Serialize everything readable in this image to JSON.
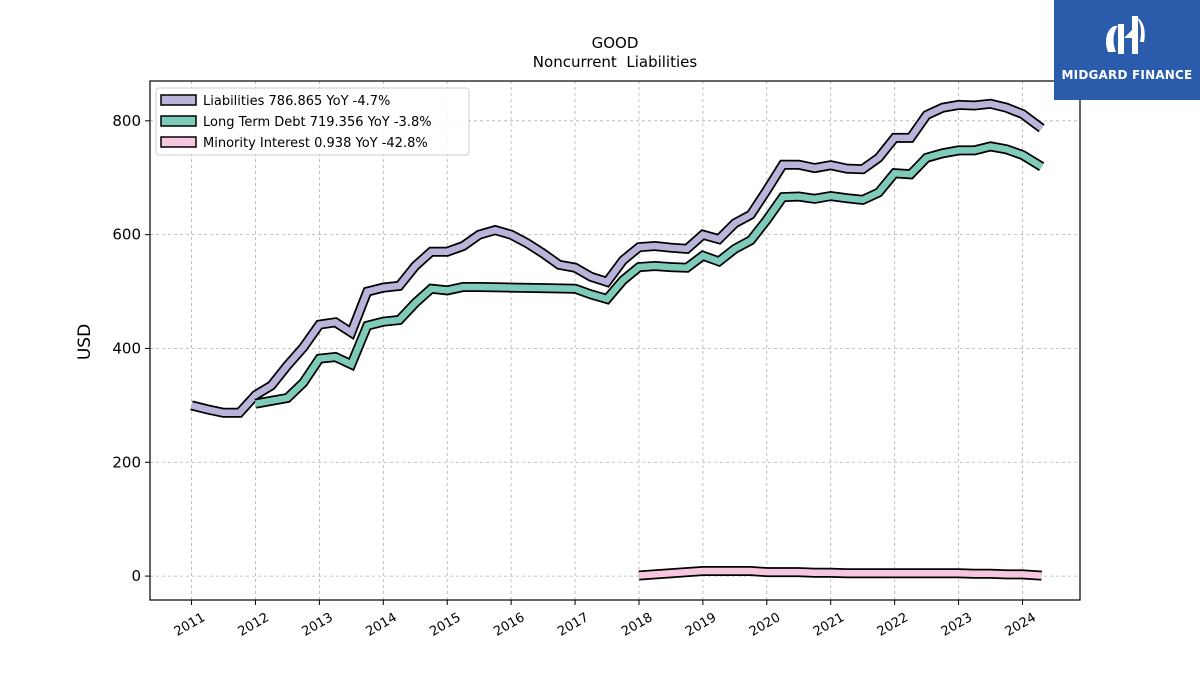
{
  "brand": {
    "name": "MIDGARD FINANCE",
    "color": "#2b5bab"
  },
  "chart_data": {
    "type": "line",
    "title": "GOOD",
    "subtitle": "Noncurrent  Liabilities",
    "xlabel": "",
    "ylabel": "USD",
    "xlim": [
      2010.35,
      2024.9
    ],
    "ylim": [
      -42,
      870
    ],
    "yticks": [
      0,
      200,
      400,
      600,
      800
    ],
    "xticks": [
      2011,
      2012,
      2013,
      2014,
      2015,
      2016,
      2017,
      2018,
      2019,
      2020,
      2021,
      2022,
      2023,
      2024
    ],
    "grid": true,
    "legend_position": "top-left",
    "series": [
      {
        "name": "Liabilities",
        "legend_label": "Liabilities  786.865 YoY -4.7%",
        "color": "#b8b4da",
        "x": [
          2011.0,
          2011.25,
          2011.5,
          2011.75,
          2012.0,
          2012.25,
          2012.5,
          2012.75,
          2013.0,
          2013.25,
          2013.5,
          2013.75,
          2014.0,
          2014.25,
          2014.5,
          2014.75,
          2015.0,
          2015.25,
          2015.5,
          2015.75,
          2016.0,
          2016.25,
          2016.5,
          2016.75,
          2017.0,
          2017.25,
          2017.5,
          2017.75,
          2018.0,
          2018.25,
          2018.5,
          2018.75,
          2019.0,
          2019.25,
          2019.5,
          2019.75,
          2020.0,
          2020.25,
          2020.5,
          2020.75,
          2021.0,
          2021.25,
          2021.5,
          2021.75,
          2022.0,
          2022.25,
          2022.5,
          2022.75,
          2023.0,
          2023.25,
          2023.5,
          2023.75,
          2024.0,
          2024.3
        ],
        "values": [
          300,
          293,
          287,
          287,
          318,
          335,
          370,
          402,
          442,
          446,
          428,
          500,
          507,
          510,
          545,
          570,
          570,
          580,
          600,
          608,
          600,
          585,
          567,
          547,
          542,
          526,
          517,
          555,
          578,
          580,
          577,
          575,
          600,
          592,
          620,
          635,
          678,
          723,
          723,
          717,
          722,
          716,
          715,
          735,
          770,
          770,
          810,
          823,
          828,
          827,
          830,
          823,
          812,
          786.865
        ]
      },
      {
        "name": "Long Term Debt",
        "legend_label": "Long Term Debt  719.356 YoY -3.8%",
        "color": "#7ecbb9",
        "x": [
          2012.0,
          2012.25,
          2012.5,
          2012.75,
          2013.0,
          2013.25,
          2013.5,
          2013.75,
          2014.0,
          2014.25,
          2014.5,
          2014.75,
          2015.0,
          2015.25,
          2015.5,
          2016.0,
          2016.5,
          2017.0,
          2017.25,
          2017.5,
          2017.75,
          2018.0,
          2018.25,
          2018.5,
          2018.75,
          2019.0,
          2019.25,
          2019.5,
          2019.75,
          2020.0,
          2020.25,
          2020.5,
          2020.75,
          2021.0,
          2021.25,
          2021.5,
          2021.75,
          2022.0,
          2022.25,
          2022.5,
          2022.75,
          2023.0,
          2023.25,
          2023.5,
          2023.75,
          2024.0,
          2024.3
        ],
        "values": [
          303,
          308,
          313,
          340,
          382,
          385,
          372,
          440,
          447,
          450,
          480,
          505,
          502,
          508,
          508,
          507,
          506,
          505,
          495,
          487,
          520,
          543,
          545,
          543,
          542,
          563,
          553,
          575,
          590,
          626,
          666,
          667,
          663,
          668,
          664,
          661,
          674,
          708,
          706,
          735,
          743,
          748,
          748,
          755,
          750,
          740,
          719.356
        ]
      },
      {
        "name": "Minority Interest",
        "legend_label": "Minority Interest  0.938 YoY -42.8%",
        "color": "#f6c6de",
        "x": [
          2018.0,
          2018.25,
          2018.5,
          2018.75,
          2019.0,
          2019.25,
          2019.5,
          2019.75,
          2020.0,
          2020.25,
          2020.5,
          2020.75,
          2021.0,
          2021.25,
          2021.5,
          2021.75,
          2022.0,
          2022.25,
          2022.5,
          2022.75,
          2023.0,
          2023.25,
          2023.5,
          2023.75,
          2024.0,
          2024.3
        ],
        "values": [
          1,
          3,
          5,
          7,
          9,
          9,
          9,
          9,
          7,
          7,
          7,
          6,
          6,
          5,
          5,
          5,
          5,
          5,
          5,
          5,
          5,
          4,
          4,
          3,
          3,
          0.938
        ]
      }
    ]
  }
}
